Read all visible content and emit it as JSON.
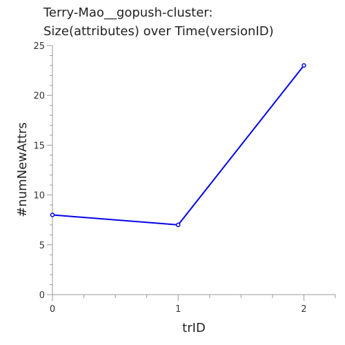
{
  "chart_data": {
    "type": "line",
    "title_lines": [
      "Terry-Mao__gopush-cluster:",
      "Size(attributes) over Time(versionID)"
    ],
    "xlabel": "trID",
    "ylabel": "#numNewAttrs",
    "x": [
      0,
      1,
      2
    ],
    "xlim": [
      0,
      2.25
    ],
    "x_major_ticks": [
      0,
      1,
      2
    ],
    "x_minor_ticks": [
      0.25,
      0.5,
      0.75,
      1.25,
      1.5,
      1.75,
      2.25
    ],
    "ylim": [
      0,
      25
    ],
    "y_major_ticks": [
      0,
      5,
      10,
      15,
      20,
      25
    ],
    "y_minor_ticks": [
      1,
      2,
      3,
      4,
      6,
      7,
      8,
      9,
      11,
      12,
      13,
      14,
      16,
      17,
      18,
      19,
      21,
      22,
      23,
      24
    ],
    "grid": false,
    "series": [
      {
        "values": [
          8,
          7,
          23
        ],
        "color": "#0000ee"
      }
    ]
  }
}
